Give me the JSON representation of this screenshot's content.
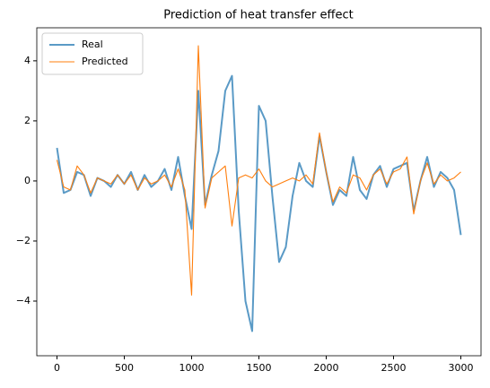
{
  "chart_data": {
    "type": "line",
    "title": "Prediction of heat transfer effect",
    "x": [
      0,
      50,
      100,
      150,
      200,
      250,
      300,
      350,
      400,
      450,
      500,
      550,
      600,
      650,
      700,
      750,
      800,
      850,
      900,
      950,
      1000,
      1050,
      1100,
      1150,
      1200,
      1250,
      1300,
      1350,
      1400,
      1450,
      1500,
      1550,
      1600,
      1650,
      1700,
      1750,
      1800,
      1850,
      1900,
      1950,
      2000,
      2050,
      2100,
      2150,
      2200,
      2250,
      2300,
      2350,
      2400,
      2450,
      2500,
      2550,
      2600,
      2650,
      2700,
      2750,
      2800,
      2850,
      2900,
      2950,
      3000
    ],
    "series": [
      {
        "name": "Real",
        "color": "#5a9ac6",
        "values": [
          1.1,
          -0.4,
          -0.3,
          0.3,
          0.2,
          -0.5,
          0.1,
          0.0,
          -0.2,
          0.2,
          -0.1,
          0.3,
          -0.3,
          0.2,
          -0.2,
          0.0,
          0.4,
          -0.3,
          0.8,
          -0.5,
          -1.6,
          3.0,
          -0.8,
          0.2,
          1.0,
          3.0,
          3.5,
          -1.0,
          -4.0,
          -5.0,
          2.5,
          2.0,
          -0.5,
          -2.7,
          -2.2,
          -0.5,
          0.6,
          0.0,
          -0.2,
          1.5,
          0.3,
          -0.8,
          -0.3,
          -0.5,
          0.8,
          -0.3,
          -0.6,
          0.2,
          0.5,
          -0.2,
          0.4,
          0.5,
          0.6,
          -1.0,
          0.0,
          0.8,
          -0.2,
          0.3,
          0.1,
          -0.3,
          -1.8
        ]
      },
      {
        "name": "Predicted",
        "color": "#ff7f0e",
        "values": [
          0.7,
          -0.2,
          -0.3,
          0.5,
          0.2,
          -0.4,
          0.1,
          0.0,
          -0.1,
          0.2,
          -0.1,
          0.2,
          -0.3,
          0.1,
          -0.1,
          0.0,
          0.2,
          -0.2,
          0.4,
          -0.3,
          -3.8,
          4.5,
          -0.9,
          0.1,
          0.3,
          0.5,
          -1.5,
          0.1,
          0.2,
          0.1,
          0.4,
          0.0,
          -0.2,
          -0.1,
          0.0,
          0.1,
          0.0,
          0.2,
          -0.1,
          1.6,
          0.3,
          -0.7,
          -0.2,
          -0.4,
          0.2,
          0.1,
          -0.3,
          0.2,
          0.4,
          -0.1,
          0.3,
          0.4,
          0.8,
          -1.1,
          0.0,
          0.6,
          -0.1,
          0.2,
          0.0,
          0.1,
          0.3
        ]
      }
    ],
    "xlim": [
      -150,
      3150
    ],
    "ylim": [
      -5.82,
      5.1
    ],
    "xticks": [
      0,
      500,
      1000,
      1500,
      2000,
      2500,
      3000
    ],
    "yticks": [
      {
        "value": -4,
        "label": "−4"
      },
      {
        "value": -2,
        "label": "−2"
      },
      0,
      2,
      4
    ],
    "legend": "upper left",
    "grid": false
  }
}
